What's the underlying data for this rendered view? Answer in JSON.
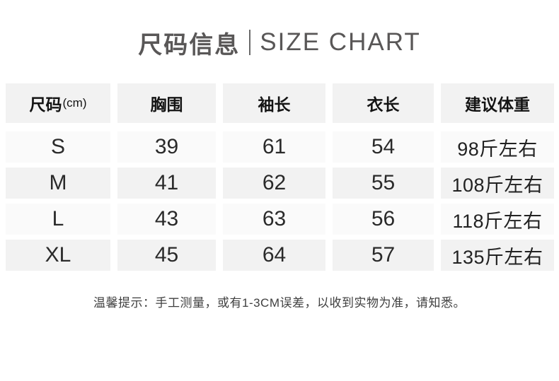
{
  "title": {
    "cn": "尺码信息",
    "en": "SIZE CHART"
  },
  "table": {
    "headers": {
      "size": "尺码",
      "size_unit": "(cm)",
      "bust": "胸围",
      "sleeve": "袖长",
      "length": "衣长",
      "weight": "建议体重"
    },
    "rows": [
      {
        "size": "S",
        "bust": "39",
        "sleeve": "61",
        "length": "54",
        "weight": "98斤左右"
      },
      {
        "size": "M",
        "bust": "41",
        "sleeve": "62",
        "length": "55",
        "weight": "108斤左右"
      },
      {
        "size": "L",
        "bust": "43",
        "sleeve": "63",
        "length": "56",
        "weight": "118斤左右"
      },
      {
        "size": "XL",
        "bust": "45",
        "sleeve": "64",
        "length": "57",
        "weight": "135斤左右"
      }
    ]
  },
  "note": "温馨提示：手工测量，或有1-3CM误差，以收到实物为准，请知悉。",
  "colors": {
    "title_text": "#595757",
    "header_bg": "#f2f2f2",
    "row_odd_bg": "#fafafa",
    "row_even_bg": "#f2f2f2",
    "body_text": "#2a2a2a"
  }
}
